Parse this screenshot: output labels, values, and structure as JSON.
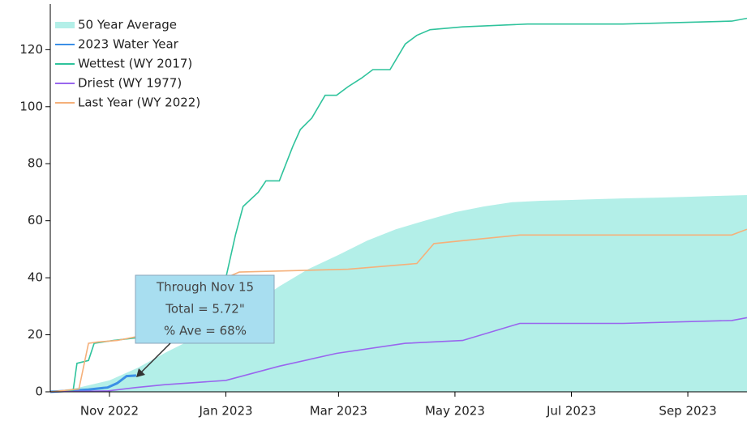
{
  "chart_data": {
    "type": "line",
    "xlim": [
      0,
      365
    ],
    "xticks": [
      {
        "value": 31,
        "label": "Nov 2022"
      },
      {
        "value": 92,
        "label": "Jan 2023"
      },
      {
        "value": 151,
        "label": "Mar 2023"
      },
      {
        "value": 212,
        "label": "May 2023"
      },
      {
        "value": 273,
        "label": "Jul 2023"
      },
      {
        "value": 334,
        "label": "Sep 2023"
      }
    ],
    "ylim": [
      0,
      136
    ],
    "yticks": [
      0,
      20,
      40,
      60,
      80,
      100,
      120
    ],
    "legend": "top-left",
    "series": [
      {
        "name": "50 Year Average",
        "color": "#b3efe8",
        "kind": "area",
        "x": [
          0,
          15,
          31,
          46,
          61,
          76,
          92,
          107,
          120,
          135,
          151,
          166,
          181,
          196,
          212,
          227,
          242,
          257,
          273,
          288,
          304,
          319,
          334,
          349,
          365
        ],
        "values": [
          0,
          1.5,
          4,
          8.5,
          14,
          19,
          25,
          31,
          37,
          43,
          48,
          53,
          57,
          60,
          63,
          65,
          66.5,
          67,
          67.3,
          67.6,
          67.9,
          68.1,
          68.4,
          68.7,
          69
        ]
      },
      {
        "name": "2023 Water Year",
        "color": "#3b8fe6",
        "x": [
          0,
          20,
          30,
          35,
          40,
          45
        ],
        "values": [
          0,
          0.8,
          1.5,
          3,
          5.5,
          5.72
        ]
      },
      {
        "name": "Wettest (WY 2017)",
        "color": "#2fc39c",
        "x": [
          0,
          12,
          14,
          20,
          23,
          33,
          46,
          60,
          76,
          85,
          92,
          97,
          101,
          109,
          113,
          120,
          127,
          131,
          137,
          144,
          150,
          156,
          163,
          169,
          178,
          186,
          192,
          199,
          216,
          250,
          300,
          357,
          365
        ],
        "values": [
          0,
          0.5,
          10,
          11,
          17,
          18,
          19,
          22,
          25,
          32,
          40,
          55,
          65,
          70,
          74,
          74,
          86,
          92,
          96,
          104,
          104,
          107,
          110,
          113,
          113,
          122,
          125,
          127,
          128,
          129,
          129,
          130,
          131
        ]
      },
      {
        "name": "Driest (WY 1977)",
        "color": "#9966ee",
        "x": [
          0,
          30,
          45,
          60,
          92,
          120,
          150,
          186,
          216,
          246,
          300,
          357,
          365
        ],
        "values": [
          0,
          0.3,
          1.5,
          2.5,
          4,
          9,
          13.5,
          17,
          18,
          24,
          24,
          25,
          26
        ]
      },
      {
        "name": "Last Year (WY 2022)",
        "color": "#f5b07a",
        "x": [
          0,
          15,
          20,
          25,
          35,
          50,
          70,
          80,
          92,
          99,
          156,
          192,
          201,
          216,
          246,
          300,
          357,
          365
        ],
        "values": [
          0,
          1,
          17,
          17.5,
          18,
          20,
          21,
          30,
          40,
          42,
          43,
          45,
          52,
          53,
          55,
          55,
          55,
          57
        ]
      }
    ],
    "annotation": {
      "lines": [
        "Through Nov 15",
        "Total = 5.72\"",
        "% Ave = 68%"
      ]
    }
  }
}
